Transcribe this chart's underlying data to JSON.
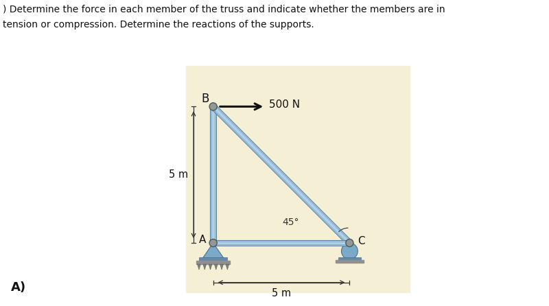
{
  "bg_color": "#f5f0d5",
  "outer_bg": "#ffffff",
  "title_line1": ") Determine the force in each member of the truss and indicate whether the members are in",
  "title_line2": "tension or compression. Determine the reactions of the supports.",
  "label_A": "A",
  "label_B": "B",
  "label_C": "C",
  "label_force": "500 N",
  "label_5m_vert": "5 m",
  "label_5m_horiz": "5 m",
  "label_45": "45°",
  "label_caption": "A)",
  "member_color": "#b0cfe8",
  "member_edge_color": "#5580a0",
  "support_color_pin": "#7aaac8",
  "support_color_roller": "#7aaac8",
  "arrow_color": "#111111",
  "dim_color": "#333333",
  "node_color": "#909898",
  "nodes": {
    "A": [
      0.0,
      0.0
    ],
    "B": [
      0.0,
      5.0
    ],
    "C": [
      5.0,
      0.0
    ]
  }
}
